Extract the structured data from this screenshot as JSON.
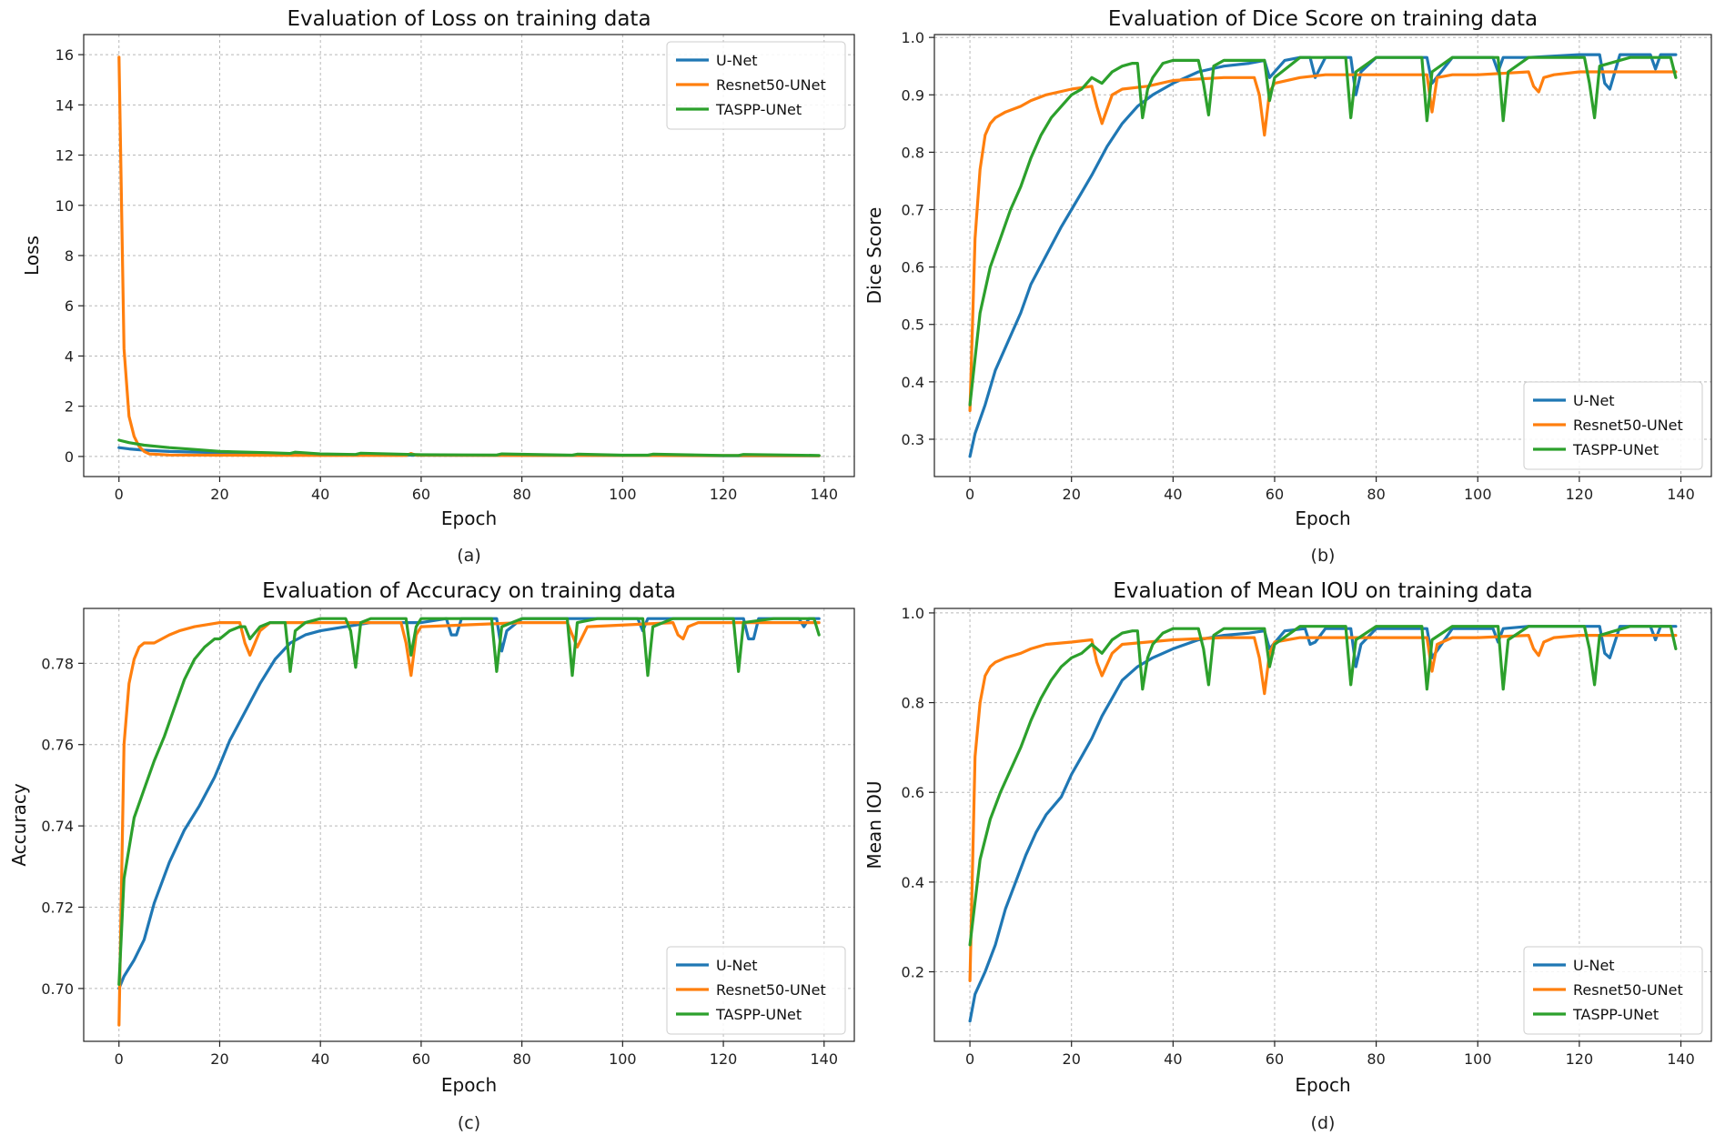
{
  "colors": {
    "U-Net": "#1f77b4",
    "Resnet50-UNet": "#ff7f0e",
    "TASPP-UNet": "#2ca02c"
  },
  "chart_data": [
    {
      "id": "a",
      "type": "line",
      "title": "Evaluation of Loss on training data",
      "xlabel": "Epoch",
      "ylabel": "Loss",
      "caption": "(a)",
      "xlim": [
        -7,
        146
      ],
      "ylim": [
        -0.8,
        16.8
      ],
      "xticks": [
        0,
        20,
        40,
        60,
        80,
        100,
        120,
        140
      ],
      "yticks": [
        0,
        2,
        4,
        6,
        8,
        10,
        12,
        14,
        16
      ],
      "ytick_decimals": 0,
      "grid": true,
      "legend_position": "top-right",
      "series": [
        {
          "name": "U-Net",
          "x": [
            0,
            2,
            5,
            10,
            20,
            30,
            40,
            60,
            80,
            100,
            120,
            139
          ],
          "y": [
            0.35,
            0.3,
            0.25,
            0.2,
            0.15,
            0.1,
            0.07,
            0.05,
            0.04,
            0.04,
            0.03,
            0.03
          ]
        },
        {
          "name": "Resnet50-UNet",
          "x": [
            0,
            1,
            2,
            3,
            4,
            5,
            6,
            8,
            10,
            20,
            40,
            57,
            58,
            59,
            80,
            100,
            139
          ],
          "y": [
            15.9,
            4.3,
            1.6,
            0.8,
            0.4,
            0.2,
            0.1,
            0.08,
            0.06,
            0.05,
            0.04,
            0.04,
            0.12,
            0.05,
            0.04,
            0.04,
            0.03
          ]
        },
        {
          "name": "TASPP-UNet",
          "x": [
            0,
            2,
            5,
            10,
            15,
            20,
            30,
            34,
            35,
            40,
            47,
            48,
            60,
            75,
            76,
            90,
            91,
            100,
            105,
            106,
            120,
            123,
            124,
            139
          ],
          "y": [
            0.65,
            0.55,
            0.45,
            0.35,
            0.28,
            0.2,
            0.15,
            0.12,
            0.17,
            0.1,
            0.08,
            0.13,
            0.07,
            0.06,
            0.1,
            0.05,
            0.09,
            0.05,
            0.05,
            0.09,
            0.04,
            0.04,
            0.08,
            0.04
          ]
        }
      ]
    },
    {
      "id": "b",
      "type": "line",
      "title": "Evaluation of Dice Score on training data",
      "xlabel": "Epoch",
      "ylabel": "Dice Score",
      "caption": "(b)",
      "xlim": [
        -7,
        146
      ],
      "ylim": [
        0.235,
        1.005
      ],
      "xticks": [
        0,
        20,
        40,
        60,
        80,
        100,
        120,
        140
      ],
      "yticks": [
        0.3,
        0.4,
        0.5,
        0.6,
        0.7,
        0.8,
        0.9,
        1.0
      ],
      "ytick_decimals": 1,
      "grid": true,
      "legend_position": "bottom-right",
      "series": [
        {
          "name": "U-Net",
          "x": [
            0,
            1,
            3,
            5,
            8,
            10,
            12,
            15,
            18,
            20,
            22,
            24,
            27,
            30,
            33,
            36,
            40,
            45,
            50,
            55,
            58,
            59,
            62,
            65,
            67,
            68,
            70,
            75,
            76,
            77,
            80,
            90,
            91,
            95,
            100,
            103,
            104,
            105,
            110,
            120,
            124,
            125,
            126,
            128,
            134,
            135,
            136,
            139
          ],
          "y": [
            0.27,
            0.31,
            0.36,
            0.42,
            0.48,
            0.52,
            0.57,
            0.62,
            0.67,
            0.7,
            0.73,
            0.76,
            0.81,
            0.85,
            0.88,
            0.9,
            0.92,
            0.94,
            0.95,
            0.955,
            0.96,
            0.93,
            0.96,
            0.965,
            0.965,
            0.93,
            0.965,
            0.965,
            0.9,
            0.94,
            0.965,
            0.965,
            0.92,
            0.965,
            0.965,
            0.965,
            0.94,
            0.965,
            0.965,
            0.97,
            0.97,
            0.92,
            0.91,
            0.97,
            0.97,
            0.945,
            0.97,
            0.97
          ]
        },
        {
          "name": "Resnet50-UNet",
          "x": [
            0,
            1,
            2,
            3,
            4,
            5,
            7,
            10,
            12,
            15,
            20,
            24,
            25,
            26,
            28,
            30,
            35,
            40,
            50,
            56,
            57,
            58,
            59,
            60,
            65,
            70,
            80,
            89,
            90,
            91,
            92,
            95,
            100,
            110,
            111,
            112,
            113,
            115,
            120,
            139
          ],
          "y": [
            0.35,
            0.65,
            0.77,
            0.83,
            0.85,
            0.86,
            0.87,
            0.88,
            0.89,
            0.9,
            0.91,
            0.915,
            0.88,
            0.85,
            0.9,
            0.91,
            0.915,
            0.925,
            0.93,
            0.93,
            0.9,
            0.83,
            0.905,
            0.92,
            0.93,
            0.935,
            0.935,
            0.935,
            0.935,
            0.87,
            0.93,
            0.935,
            0.935,
            0.94,
            0.915,
            0.905,
            0.93,
            0.935,
            0.94,
            0.94
          ]
        },
        {
          "name": "TASPP-UNet",
          "x": [
            0,
            2,
            4,
            6,
            8,
            10,
            12,
            14,
            16,
            18,
            20,
            22,
            24,
            26,
            28,
            30,
            32,
            33,
            34,
            35,
            36,
            38,
            40,
            45,
            46,
            47,
            48,
            50,
            55,
            58,
            59,
            60,
            65,
            74,
            75,
            76,
            80,
            89,
            90,
            91,
            95,
            104,
            105,
            106,
            110,
            121,
            122,
            123,
            124,
            130,
            138,
            139
          ],
          "y": [
            0.36,
            0.52,
            0.6,
            0.65,
            0.7,
            0.74,
            0.79,
            0.83,
            0.86,
            0.88,
            0.9,
            0.91,
            0.93,
            0.92,
            0.94,
            0.95,
            0.955,
            0.955,
            0.86,
            0.91,
            0.93,
            0.955,
            0.96,
            0.96,
            0.92,
            0.865,
            0.95,
            0.96,
            0.96,
            0.96,
            0.89,
            0.93,
            0.965,
            0.965,
            0.86,
            0.94,
            0.965,
            0.965,
            0.855,
            0.94,
            0.965,
            0.965,
            0.855,
            0.94,
            0.965,
            0.965,
            0.92,
            0.86,
            0.95,
            0.965,
            0.965,
            0.93
          ]
        }
      ]
    },
    {
      "id": "c",
      "type": "line",
      "title": "Evaluation of Accuracy on training data",
      "xlabel": "Epoch",
      "ylabel": "Accuracy",
      "caption": "(c)",
      "xlim": [
        -7,
        146
      ],
      "ylim": [
        0.687,
        0.7935
      ],
      "xticks": [
        0,
        20,
        40,
        60,
        80,
        100,
        120,
        140
      ],
      "yticks": [
        0.7,
        0.72,
        0.74,
        0.76,
        0.78
      ],
      "ytick_decimals": 2,
      "grid": true,
      "legend_position": "bottom-right",
      "series": [
        {
          "name": "U-Net",
          "x": [
            0,
            1,
            3,
            5,
            7,
            10,
            13,
            16,
            19,
            20,
            22,
            25,
            28,
            31,
            34,
            37,
            40,
            45,
            50,
            55,
            60,
            65,
            66,
            67,
            68,
            70,
            75,
            76,
            77,
            80,
            100,
            103,
            104,
            105,
            120,
            124,
            125,
            126,
            127,
            135,
            136,
            137,
            139
          ],
          "y": [
            0.7,
            0.703,
            0.707,
            0.712,
            0.721,
            0.731,
            0.739,
            0.745,
            0.752,
            0.755,
            0.761,
            0.768,
            0.775,
            0.781,
            0.785,
            0.787,
            0.788,
            0.789,
            0.79,
            0.79,
            0.79,
            0.791,
            0.787,
            0.787,
            0.791,
            0.791,
            0.791,
            0.783,
            0.788,
            0.791,
            0.791,
            0.791,
            0.788,
            0.791,
            0.791,
            0.791,
            0.786,
            0.786,
            0.791,
            0.791,
            0.789,
            0.791,
            0.791
          ]
        },
        {
          "name": "Resnet50-UNet",
          "x": [
            0,
            1,
            2,
            3,
            4,
            5,
            7,
            10,
            12,
            15,
            20,
            24,
            25,
            26,
            28,
            30,
            40,
            56,
            57,
            58,
            59,
            60,
            80,
            89,
            90,
            91,
            93,
            110,
            111,
            112,
            113,
            115,
            120,
            139
          ],
          "y": [
            0.691,
            0.76,
            0.775,
            0.781,
            0.784,
            0.785,
            0.785,
            0.787,
            0.788,
            0.789,
            0.79,
            0.79,
            0.785,
            0.782,
            0.788,
            0.79,
            0.79,
            0.79,
            0.785,
            0.777,
            0.787,
            0.789,
            0.79,
            0.79,
            0.787,
            0.784,
            0.789,
            0.79,
            0.787,
            0.786,
            0.789,
            0.79,
            0.79,
            0.79
          ]
        },
        {
          "name": "TASPP-UNet",
          "x": [
            0,
            1,
            3,
            5,
            7,
            9,
            11,
            13,
            15,
            17,
            19,
            20,
            22,
            24,
            25,
            26,
            28,
            30,
            33,
            34,
            35,
            37,
            40,
            45,
            46,
            47,
            48,
            50,
            57,
            58,
            59,
            60,
            65,
            74,
            75,
            76,
            80,
            89,
            90,
            91,
            95,
            104,
            105,
            106,
            110,
            122,
            123,
            124,
            130,
            138,
            139
          ],
          "y": [
            0.701,
            0.727,
            0.742,
            0.749,
            0.756,
            0.762,
            0.769,
            0.776,
            0.781,
            0.784,
            0.786,
            0.786,
            0.788,
            0.789,
            0.789,
            0.786,
            0.789,
            0.79,
            0.79,
            0.778,
            0.788,
            0.79,
            0.791,
            0.791,
            0.788,
            0.779,
            0.79,
            0.791,
            0.791,
            0.782,
            0.789,
            0.791,
            0.791,
            0.791,
            0.778,
            0.789,
            0.791,
            0.791,
            0.777,
            0.79,
            0.791,
            0.791,
            0.777,
            0.789,
            0.791,
            0.791,
            0.778,
            0.79,
            0.791,
            0.791,
            0.787
          ]
        }
      ]
    },
    {
      "id": "d",
      "type": "line",
      "title": "Evaluation of Mean IOU on training data",
      "xlabel": "Epoch",
      "ylabel": "Mean IOU",
      "caption": "(d)",
      "xlim": [
        -7,
        146
      ],
      "ylim": [
        0.045,
        1.01
      ],
      "xticks": [
        0,
        20,
        40,
        60,
        80,
        100,
        120,
        140
      ],
      "yticks": [
        0.2,
        0.4,
        0.6,
        0.8,
        1.0
      ],
      "ytick_decimals": 1,
      "grid": true,
      "legend_position": "bottom-right",
      "series": [
        {
          "name": "U-Net",
          "x": [
            0,
            1,
            3,
            5,
            7,
            9,
            11,
            13,
            15,
            18,
            20,
            22,
            24,
            26,
            28,
            30,
            33,
            36,
            40,
            45,
            50,
            55,
            58,
            59,
            62,
            66,
            67,
            68,
            70,
            75,
            76,
            77,
            80,
            90,
            91,
            95,
            100,
            103,
            104,
            105,
            110,
            120,
            124,
            125,
            126,
            128,
            134,
            135,
            136,
            139
          ],
          "y": [
            0.09,
            0.15,
            0.2,
            0.26,
            0.34,
            0.4,
            0.46,
            0.51,
            0.55,
            0.59,
            0.64,
            0.68,
            0.72,
            0.77,
            0.81,
            0.85,
            0.88,
            0.9,
            0.92,
            0.94,
            0.95,
            0.955,
            0.96,
            0.92,
            0.96,
            0.965,
            0.93,
            0.935,
            0.965,
            0.965,
            0.88,
            0.93,
            0.965,
            0.965,
            0.9,
            0.965,
            0.965,
            0.965,
            0.935,
            0.965,
            0.97,
            0.97,
            0.97,
            0.91,
            0.9,
            0.97,
            0.97,
            0.94,
            0.97,
            0.97
          ]
        },
        {
          "name": "Resnet50-UNet",
          "x": [
            0,
            1,
            2,
            3,
            4,
            5,
            7,
            10,
            12,
            15,
            20,
            24,
            25,
            26,
            28,
            30,
            35,
            40,
            50,
            56,
            57,
            58,
            59,
            60,
            65,
            70,
            80,
            89,
            90,
            91,
            92,
            95,
            100,
            110,
            111,
            112,
            113,
            115,
            120,
            139
          ],
          "y": [
            0.18,
            0.68,
            0.8,
            0.86,
            0.88,
            0.89,
            0.9,
            0.91,
            0.92,
            0.93,
            0.935,
            0.94,
            0.89,
            0.86,
            0.91,
            0.93,
            0.935,
            0.94,
            0.945,
            0.945,
            0.9,
            0.82,
            0.91,
            0.935,
            0.945,
            0.945,
            0.945,
            0.945,
            0.945,
            0.87,
            0.93,
            0.945,
            0.945,
            0.95,
            0.92,
            0.905,
            0.935,
            0.945,
            0.95,
            0.95
          ]
        },
        {
          "name": "TASPP-UNet",
          "x": [
            0,
            2,
            4,
            6,
            8,
            10,
            12,
            14,
            16,
            18,
            20,
            22,
            24,
            26,
            28,
            30,
            32,
            33,
            34,
            35,
            36,
            38,
            40,
            45,
            46,
            47,
            48,
            50,
            55,
            58,
            59,
            60,
            65,
            74,
            75,
            76,
            80,
            89,
            90,
            91,
            95,
            104,
            105,
            106,
            110,
            121,
            122,
            123,
            124,
            130,
            138,
            139
          ],
          "y": [
            0.26,
            0.45,
            0.54,
            0.6,
            0.65,
            0.7,
            0.76,
            0.81,
            0.85,
            0.88,
            0.9,
            0.91,
            0.93,
            0.91,
            0.94,
            0.955,
            0.96,
            0.96,
            0.83,
            0.9,
            0.93,
            0.955,
            0.965,
            0.965,
            0.92,
            0.84,
            0.95,
            0.965,
            0.965,
            0.965,
            0.88,
            0.93,
            0.97,
            0.97,
            0.84,
            0.94,
            0.97,
            0.97,
            0.83,
            0.94,
            0.97,
            0.97,
            0.83,
            0.94,
            0.97,
            0.97,
            0.92,
            0.84,
            0.95,
            0.97,
            0.97,
            0.92
          ]
        }
      ]
    }
  ]
}
